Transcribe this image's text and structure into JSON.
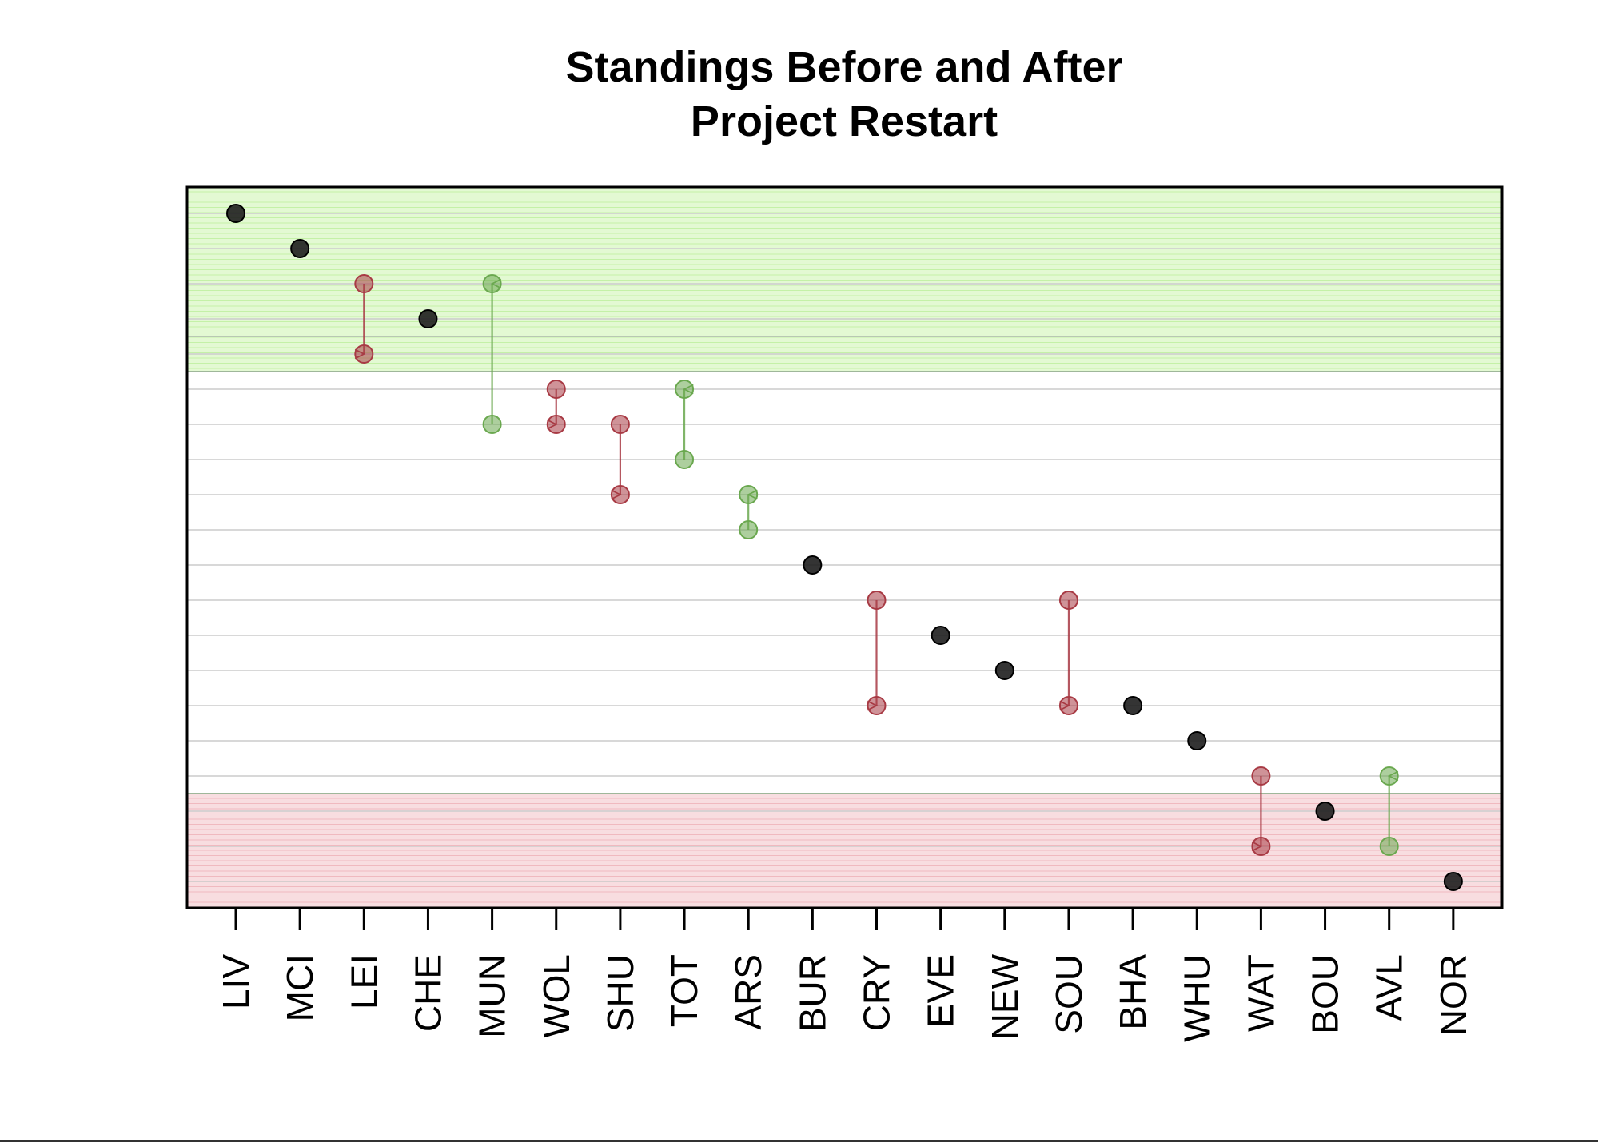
{
  "chart_data": {
    "type": "scatter",
    "title": [
      "Standings Before and After",
      "Project Restart"
    ],
    "categories": [
      "LIV",
      "MCI",
      "LEI",
      "CHE",
      "MUN",
      "WOL",
      "SHU",
      "TOT",
      "ARS",
      "BUR",
      "CRY",
      "EVE",
      "NEW",
      "SOU",
      "BHA",
      "WHU",
      "WAT",
      "BOU",
      "AVL",
      "NOR"
    ],
    "series": [
      {
        "values": [
          1,
          2,
          3,
          4,
          7,
          6,
          7,
          8,
          10,
          11,
          12,
          13,
          14,
          12,
          15,
          16,
          17,
          18,
          19,
          20
        ]
      },
      {
        "values": [
          1,
          2,
          5,
          4,
          3,
          7,
          9,
          6,
          9,
          11,
          15,
          13,
          14,
          15,
          15,
          16,
          19,
          18,
          17,
          20
        ]
      }
    ],
    "ylim": [
      20.75,
      0.25
    ],
    "grid": true,
    "bands": [
      {
        "from": 0.25,
        "to": 5.5,
        "color": "#d9f7c4"
      },
      {
        "from": 17.5,
        "to": 20.75,
        "color": "#f6d2d6"
      }
    ],
    "colors": {
      "up": "#6aa84f",
      "down": "#a83a44",
      "same": "#1e1e1e"
    }
  }
}
